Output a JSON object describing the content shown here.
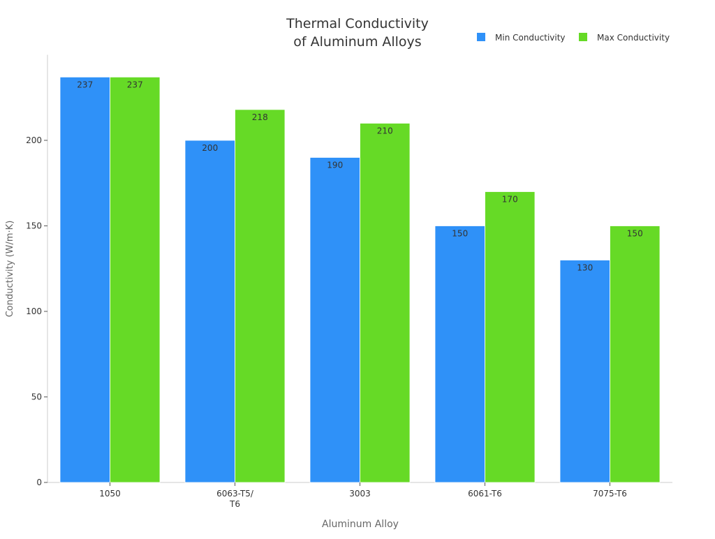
{
  "chart_data": {
    "type": "bar",
    "title": "Thermal Conductivity\nof Aluminum Alloys",
    "xlabel": "Aluminum Alloy",
    "ylabel": "Conductivity (W/m·K)",
    "categories": [
      "1050",
      "6063-T5/\nT6",
      "3003",
      "6061-T6",
      "7075-T6"
    ],
    "series": [
      {
        "name": "Min Conductivity",
        "color": "#2F91F8",
        "values": [
          237,
          200,
          190,
          150,
          130
        ]
      },
      {
        "name": "Max Conductivity",
        "color": "#66DA26",
        "values": [
          237,
          218,
          210,
          170,
          150
        ]
      }
    ],
    "ylim": [
      0,
      250
    ],
    "yticks": [
      0,
      50,
      100,
      150,
      200
    ],
    "grid": false,
    "legend": "top-right",
    "data_labels": true
  }
}
